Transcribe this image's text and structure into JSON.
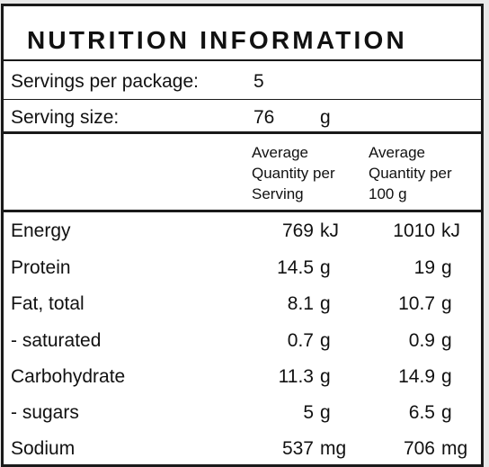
{
  "panel": {
    "title": "NUTRITION INFORMATION",
    "servings_label": "Servings per package:",
    "servings_value": "5",
    "serving_size_label": "Serving size:",
    "serving_size_value": "76",
    "serving_size_unit": "g"
  },
  "columns": {
    "per_serving": [
      "Average",
      "Quantity per",
      "Serving"
    ],
    "per_100g": [
      "Average",
      "Quantity per",
      "100 g"
    ]
  },
  "rows": [
    {
      "name": "Energy",
      "serving": "769",
      "serving_unit": "kJ",
      "per100": "1010",
      "per100_unit": "kJ"
    },
    {
      "name": "Protein",
      "serving": "14.5",
      "serving_unit": "g",
      "per100": "19",
      "per100_unit": "g"
    },
    {
      "name": "Fat, total",
      "serving": "8.1",
      "serving_unit": "g",
      "per100": "10.7",
      "per100_unit": "g"
    },
    {
      "name": "- saturated",
      "serving": "0.7",
      "serving_unit": "g",
      "per100": "0.9",
      "per100_unit": "g"
    },
    {
      "name": "Carbohydrate",
      "serving": "11.3",
      "serving_unit": "g",
      "per100": "14.9",
      "per100_unit": "g"
    },
    {
      "name": "- sugars",
      "serving": "5",
      "serving_unit": "g",
      "per100": "6.5",
      "per100_unit": "g"
    },
    {
      "name": "Sodium",
      "serving": "537",
      "serving_unit": "mg",
      "per100": "706",
      "per100_unit": "mg"
    }
  ]
}
